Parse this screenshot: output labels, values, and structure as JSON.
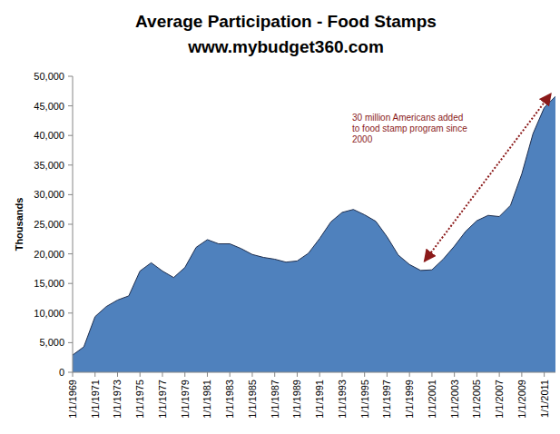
{
  "chart_data": {
    "type": "area",
    "title": "Average Participation - Food Stamps",
    "subtitle": "www.mybudget360.com",
    "y_label": "Thousands",
    "annotation": [
      "30 million Americans added",
      "to food stamp program since",
      "2000"
    ],
    "color": "#4f81bd",
    "grid": false,
    "categories": [
      "1/1/1969",
      null,
      "1/1/1971",
      null,
      "1/1/1973",
      null,
      "1/1/1975",
      null,
      "1/1/1977",
      null,
      "1/1/1979",
      null,
      "1/1/1981",
      null,
      "1/1/1983",
      null,
      "1/1/1985",
      null,
      "1/1/1987",
      null,
      "1/1/1989",
      null,
      "1/1/1991",
      null,
      "1/1/1993",
      null,
      "1/1/1995",
      null,
      "1/1/1997",
      null,
      "1/1/1999",
      null,
      "1/1/2001",
      null,
      "1/1/2003",
      null,
      "1/1/2005",
      null,
      "1/1/2007",
      null,
      "1/1/2009",
      null,
      "1/1/2011",
      null
    ],
    "values": [
      2900,
      4300,
      9400,
      11100,
      12200,
      12900,
      17100,
      18500,
      17100,
      16000,
      17700,
      21100,
      22400,
      21700,
      21700,
      20900,
      19900,
      19400,
      19100,
      18600,
      18800,
      20100,
      22600,
      25400,
      27000,
      27500,
      26600,
      25500,
      22900,
      19800,
      18200,
      17200,
      17300,
      19100,
      21300,
      23800,
      25600,
      26500,
      26300,
      28200,
      33500,
      40300,
      44700,
      46600
    ],
    "ylim": [
      0,
      50000
    ],
    "yticks": [
      0,
      {
        "value": 5000,
        "label": "5,000"
      },
      {
        "value": 10000,
        "label": "10,000"
      },
      {
        "value": 15000,
        "label": "15,000"
      },
      {
        "value": 20000,
        "label": "20,000"
      },
      {
        "value": 25000,
        "label": "25,000"
      },
      {
        "value": 30000,
        "label": "30,000"
      },
      {
        "value": 35000,
        "label": "35,000"
      },
      {
        "value": 40000,
        "label": "40,000"
      },
      {
        "value": 45000,
        "label": "45,000"
      },
      {
        "value": 50000,
        "label": "50,000"
      }
    ]
  }
}
